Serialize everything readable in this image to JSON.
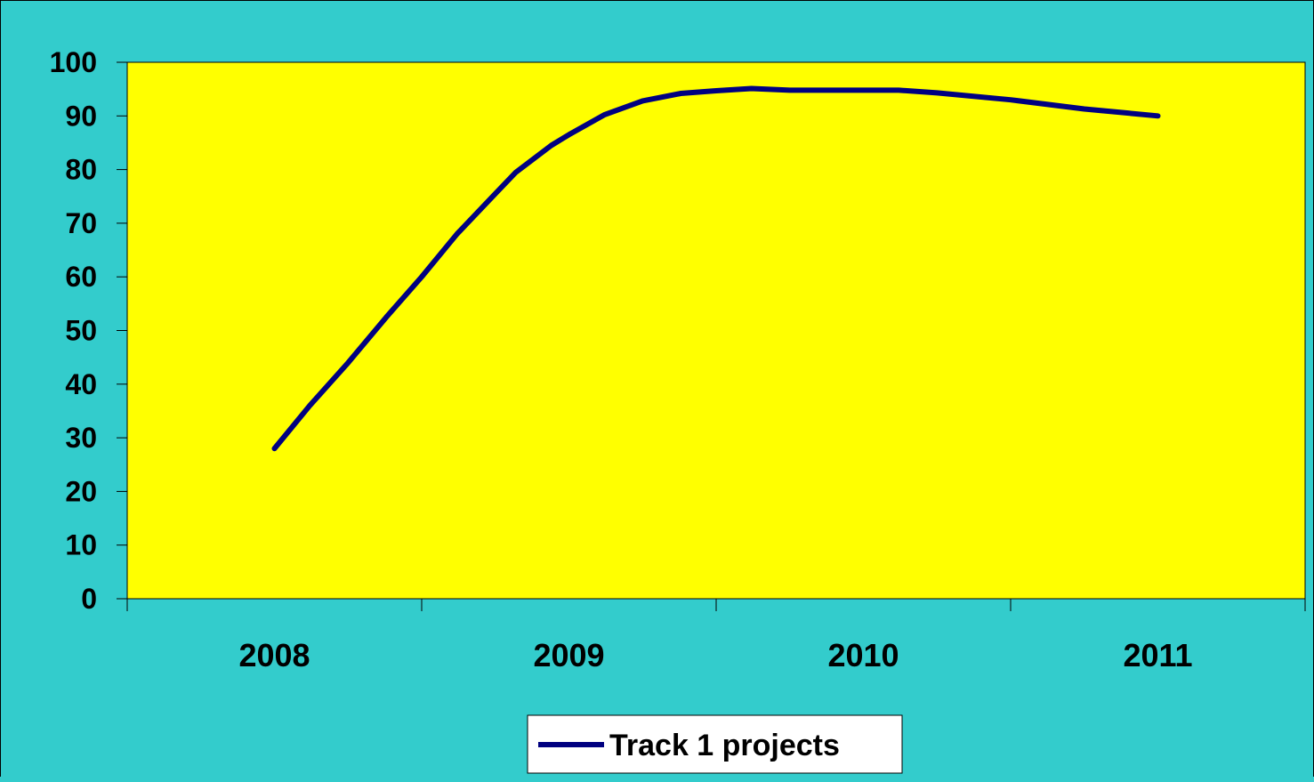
{
  "colors": {
    "background": "#33CCCC",
    "plot_area": "#FFFF00",
    "series_line": "#000080",
    "axis": "#000000"
  },
  "chart_data": {
    "type": "line",
    "title": "",
    "xlabel": "",
    "ylabel": "",
    "ylim": [
      0,
      100
    ],
    "yticks": [
      0,
      10,
      20,
      30,
      40,
      50,
      60,
      70,
      80,
      90,
      100
    ],
    "categories": [
      "2008",
      "2009",
      "2010",
      "2011"
    ],
    "grid": false,
    "legend": "bottom-center",
    "series": [
      {
        "name": "Track 1 projects",
        "color": "#000080",
        "points": [
          {
            "x": 2008.0,
            "y": 28
          },
          {
            "x": 2008.12,
            "y": 36
          },
          {
            "x": 2008.25,
            "y": 44
          },
          {
            "x": 2008.38,
            "y": 52.5
          },
          {
            "x": 2008.5,
            "y": 60
          },
          {
            "x": 2008.62,
            "y": 68
          },
          {
            "x": 2008.75,
            "y": 75.5
          },
          {
            "x": 2008.82,
            "y": 79.5
          },
          {
            "x": 2008.94,
            "y": 84.5
          },
          {
            "x": 2009.0,
            "y": 86.5
          },
          {
            "x": 2009.12,
            "y": 90.2
          },
          {
            "x": 2009.25,
            "y": 92.8
          },
          {
            "x": 2009.38,
            "y": 94.2
          },
          {
            "x": 2009.5,
            "y": 94.7
          },
          {
            "x": 2009.62,
            "y": 95.1
          },
          {
            "x": 2009.75,
            "y": 94.8
          },
          {
            "x": 2010.0,
            "y": 94.8
          },
          {
            "x": 2010.12,
            "y": 94.8
          },
          {
            "x": 2010.25,
            "y": 94.3
          },
          {
            "x": 2010.5,
            "y": 93
          },
          {
            "x": 2010.75,
            "y": 91.3
          },
          {
            "x": 2011.0,
            "y": 90
          }
        ]
      }
    ]
  }
}
